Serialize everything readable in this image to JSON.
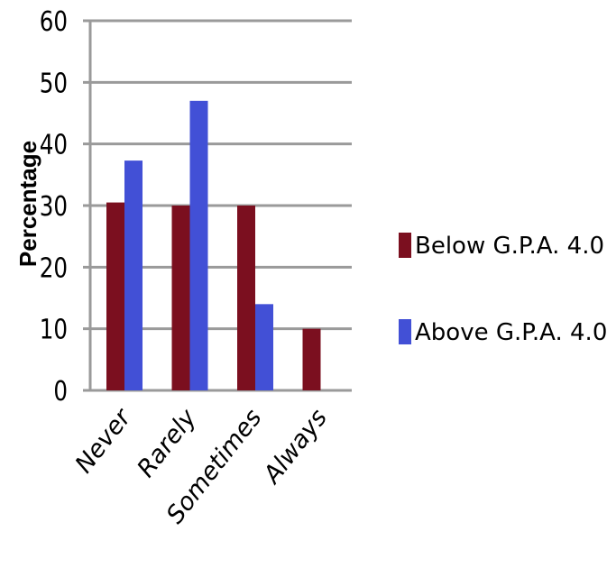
{
  "chart_data": {
    "type": "bar",
    "title": "",
    "xlabel": "",
    "ylabel": "Percentage",
    "ylim": [
      0,
      60
    ],
    "yticks": [
      0,
      10,
      20,
      30,
      40,
      50,
      60
    ],
    "categories": [
      "Never",
      "Rarely",
      "Sometimes",
      "Always"
    ],
    "series": [
      {
        "name": "Below G.P.A. 4.0",
        "color": "#7b0f1f",
        "values": [
          30.5,
          30,
          30,
          10
        ]
      },
      {
        "name": "Above G.P.A. 4.0",
        "color": "#4250d6",
        "values": [
          37.3,
          47,
          14,
          0
        ]
      }
    ],
    "grid": true,
    "legend_position": "right"
  }
}
